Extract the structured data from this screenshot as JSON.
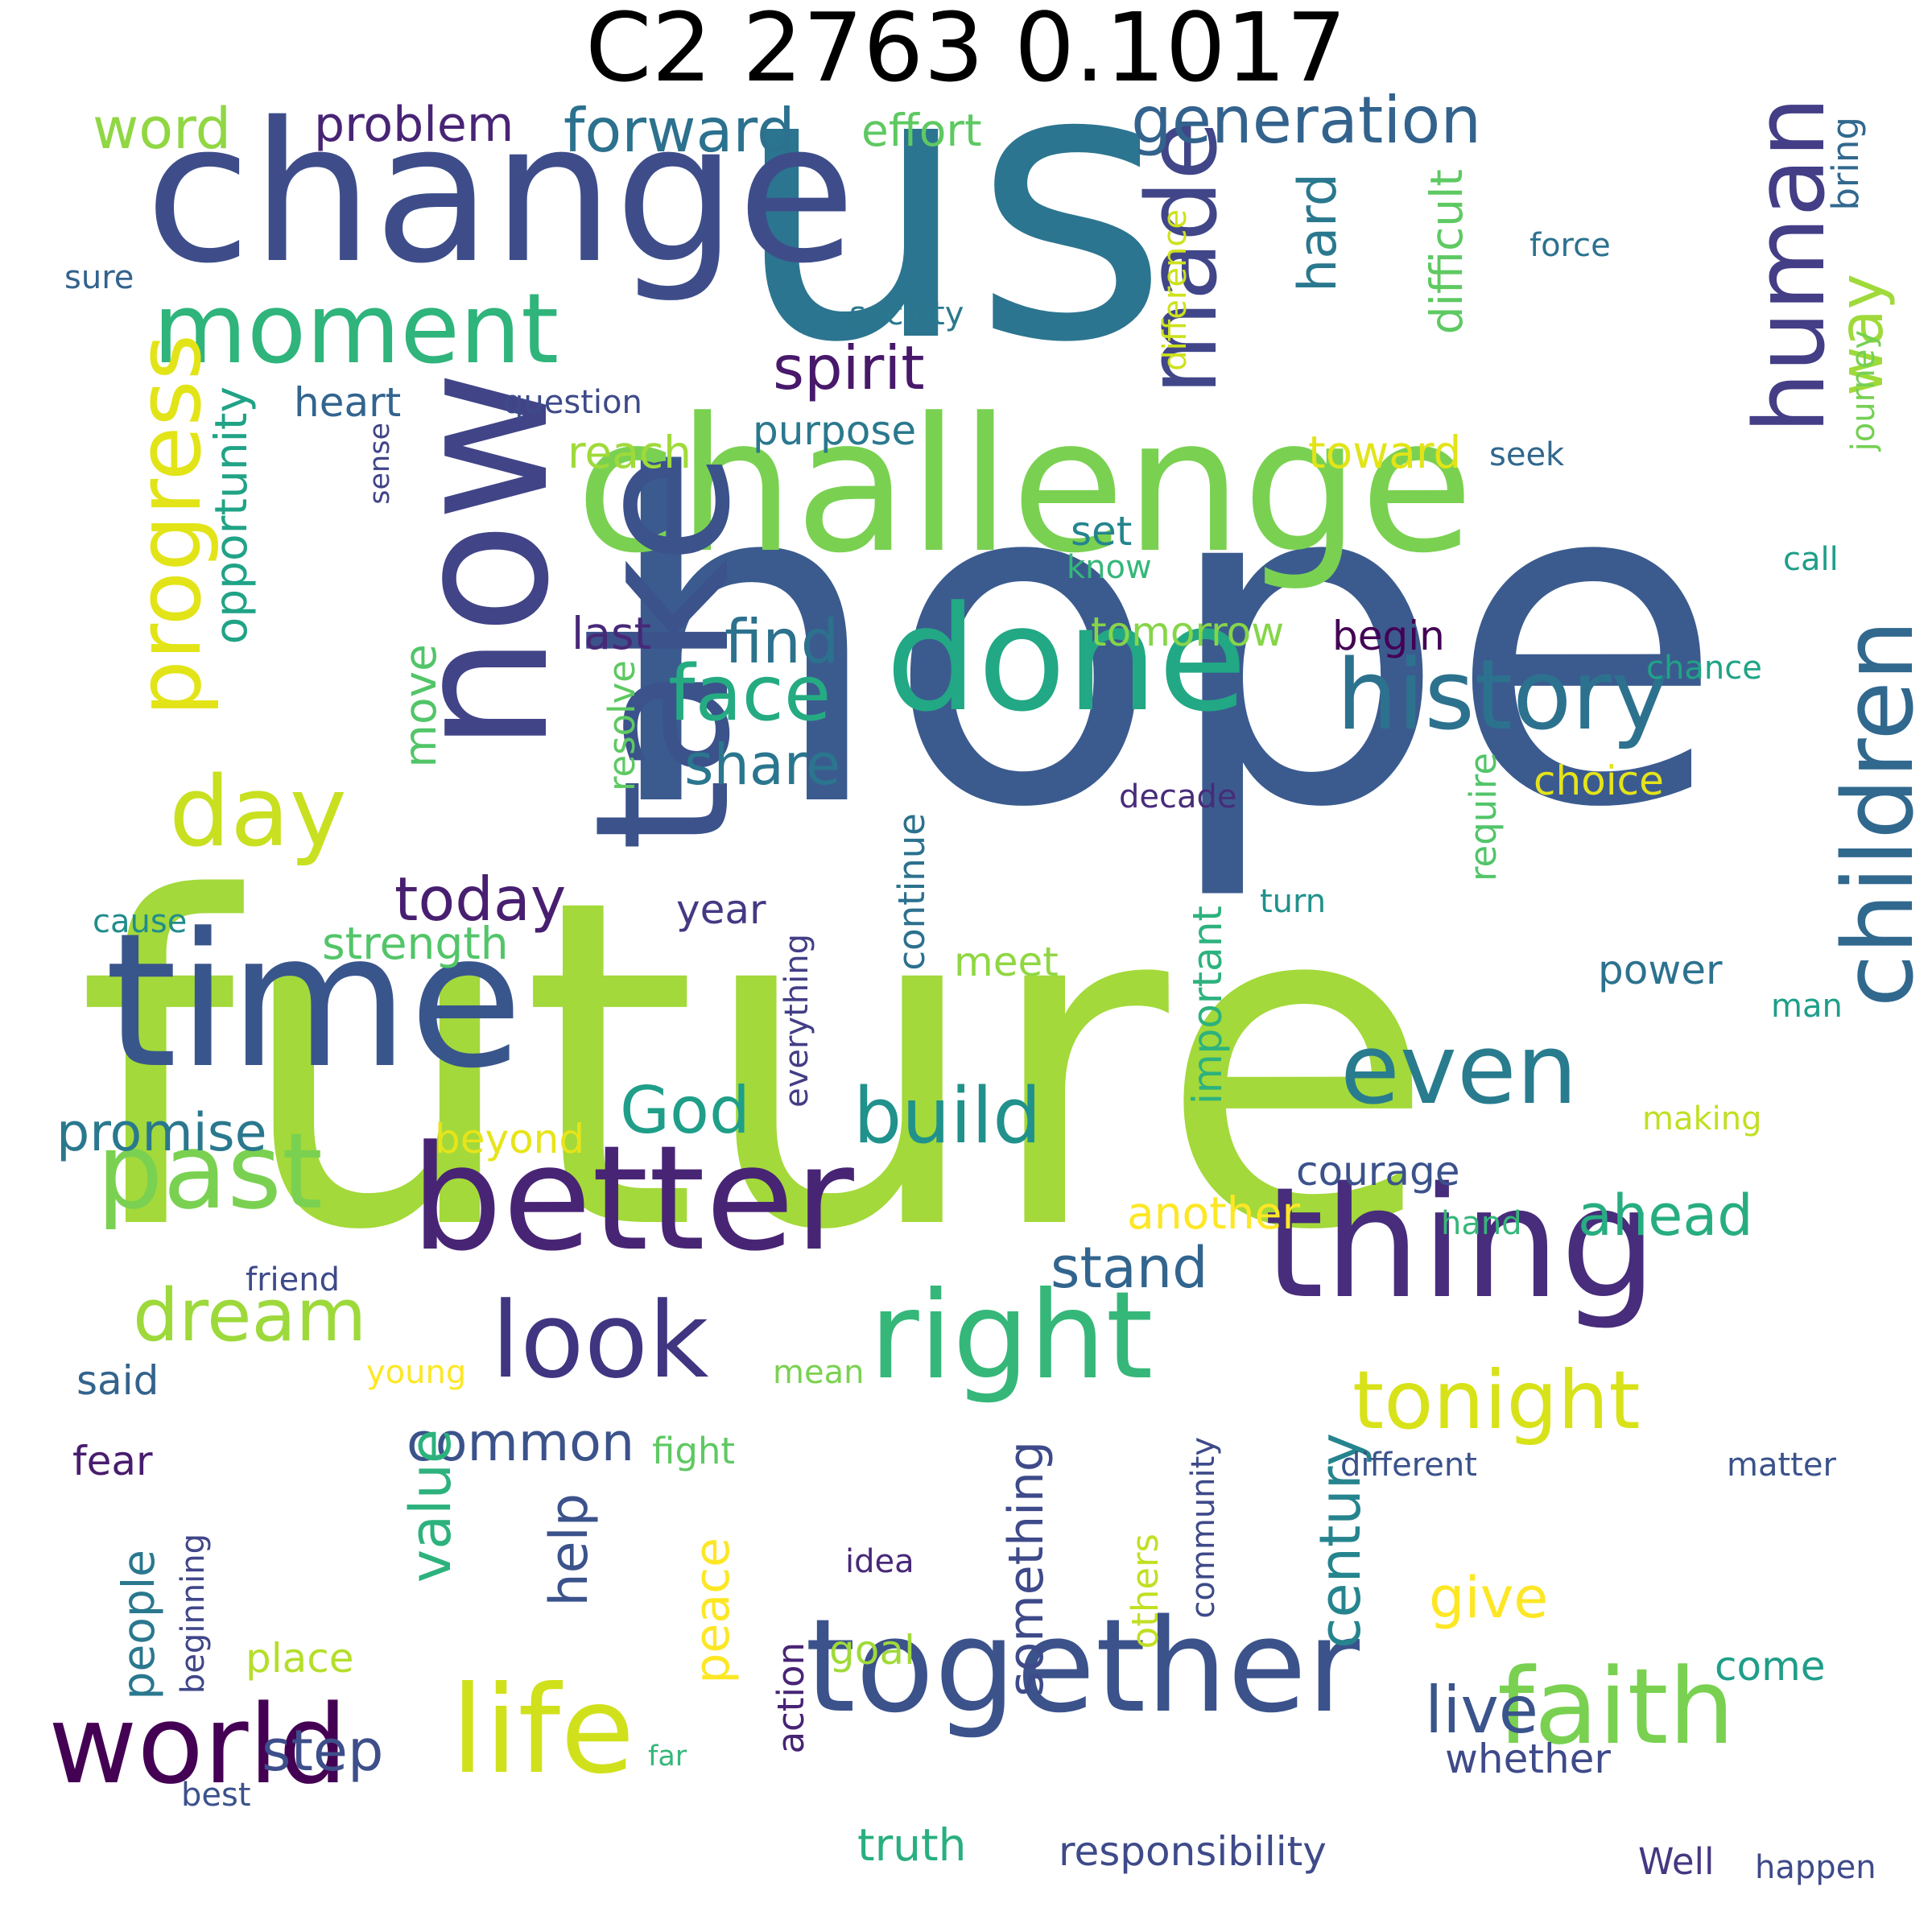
{
  "title": "C2 2763 0.1017",
  "words": [
    {
      "text": "hope",
      "color": "#3b5b8f"
    },
    {
      "text": "future",
      "color": "#a3d93a"
    },
    {
      "text": "us",
      "color": "#2c7590"
    },
    {
      "text": "change",
      "color": "#3e4d8a"
    },
    {
      "text": "challenge",
      "color": "#7ad151"
    },
    {
      "text": "time",
      "color": "#39568c"
    },
    {
      "text": "now",
      "color": "#414487"
    },
    {
      "text": "take",
      "color": "#3b528b"
    },
    {
      "text": "done",
      "color": "#22a884"
    },
    {
      "text": "better",
      "color": "#482475"
    },
    {
      "text": "thing",
      "color": "#472d7b"
    },
    {
      "text": "together",
      "color": "#3b528b"
    },
    {
      "text": "life",
      "color": "#d0e11c"
    },
    {
      "text": "world",
      "color": "#440154"
    },
    {
      "text": "faith",
      "color": "#7ad151"
    },
    {
      "text": "right",
      "color": "#35b779"
    },
    {
      "text": "look",
      "color": "#3f3580"
    },
    {
      "text": "past",
      "color": "#7ad151"
    },
    {
      "text": "history",
      "color": "#2c728e"
    },
    {
      "text": "children",
      "color": "#31688e"
    },
    {
      "text": "human",
      "color": "#433e85"
    },
    {
      "text": "made",
      "color": "#404688"
    },
    {
      "text": "even",
      "color": "#287c8e"
    },
    {
      "text": "moment",
      "color": "#2fb47c"
    },
    {
      "text": "progress",
      "color": "#e2e418"
    },
    {
      "text": "day",
      "color": "#c8e020"
    },
    {
      "text": "tonight",
      "color": "#d8e219"
    },
    {
      "text": "generation",
      "color": "#33638d"
    },
    {
      "text": "forward",
      "color": "#2c718e"
    },
    {
      "text": "spirit",
      "color": "#48186a"
    },
    {
      "text": "face",
      "color": "#25ab82"
    },
    {
      "text": "build",
      "color": "#21918c"
    },
    {
      "text": "dream",
      "color": "#9dd93b"
    },
    {
      "text": "today",
      "color": "#481f70"
    },
    {
      "text": "word",
      "color": "#90d743"
    },
    {
      "text": "problem",
      "color": "#482475"
    },
    {
      "text": "effort",
      "color": "#5ec962"
    },
    {
      "text": "way",
      "color": "#9fda3a"
    },
    {
      "text": "hard",
      "color": "#2a788e"
    },
    {
      "text": "difficult",
      "color": "#5ec962"
    },
    {
      "text": "find",
      "color": "#2c718e"
    },
    {
      "text": "share",
      "color": "#2a768e"
    },
    {
      "text": "stand",
      "color": "#32658e"
    },
    {
      "text": "ahead",
      "color": "#27ad81"
    },
    {
      "text": "God",
      "color": "#1f9e89"
    },
    {
      "text": "common",
      "color": "#3b528b"
    },
    {
      "text": "century",
      "color": "#25848e"
    },
    {
      "text": "live",
      "color": "#3a548c"
    },
    {
      "text": "give",
      "color": "#fde725"
    },
    {
      "text": "step",
      "color": "#3d4e8a"
    },
    {
      "text": "promise",
      "color": "#2a788e"
    },
    {
      "text": "something",
      "color": "#3e4a89"
    },
    {
      "text": "value",
      "color": "#2db27d"
    },
    {
      "text": "help",
      "color": "#3b528b"
    },
    {
      "text": "peace",
      "color": "#fde725"
    },
    {
      "text": "people",
      "color": "#2a788e"
    },
    {
      "text": "opportunity",
      "color": "#20a386"
    },
    {
      "text": "move",
      "color": "#52c569"
    },
    {
      "text": "bring",
      "color": "#31688e"
    },
    {
      "text": "force",
      "color": "#2c728e"
    },
    {
      "text": "society",
      "color": "#2a788e"
    },
    {
      "text": "difference",
      "color": "#cde11d"
    },
    {
      "text": "heart",
      "color": "#32648e"
    },
    {
      "text": "question",
      "color": "#3e4a89"
    },
    {
      "text": "purpose",
      "color": "#2a788e"
    },
    {
      "text": "reach",
      "color": "#9fda3a"
    },
    {
      "text": "toward",
      "color": "#e2e418"
    },
    {
      "text": "seek",
      "color": "#31688e"
    },
    {
      "text": "journey",
      "color": "#75d054"
    },
    {
      "text": "set",
      "color": "#25848e"
    },
    {
      "text": "know",
      "color": "#35b779"
    },
    {
      "text": "call",
      "color": "#1f9e89"
    },
    {
      "text": "last",
      "color": "#482878"
    },
    {
      "text": "tomorrow",
      "color": "#86d549"
    },
    {
      "text": "begin",
      "color": "#440154"
    },
    {
      "text": "chance",
      "color": "#20a386"
    },
    {
      "text": "choice",
      "color": "#e5e419"
    },
    {
      "text": "resolve",
      "color": "#5ec962"
    },
    {
      "text": "decade",
      "color": "#472c7a"
    },
    {
      "text": "require",
      "color": "#52c569"
    },
    {
      "text": "turn",
      "color": "#21918c"
    },
    {
      "text": "continue",
      "color": "#2c718e"
    },
    {
      "text": "year",
      "color": "#443983"
    },
    {
      "text": "meet",
      "color": "#90d743"
    },
    {
      "text": "power",
      "color": "#2c728e"
    },
    {
      "text": "man",
      "color": "#1f9e89"
    },
    {
      "text": "strength",
      "color": "#52c569"
    },
    {
      "text": "cause",
      "color": "#228c8d"
    },
    {
      "text": "sure",
      "color": "#33638d"
    },
    {
      "text": "sense",
      "color": "#414487"
    },
    {
      "text": "everything",
      "color": "#433e85"
    },
    {
      "text": "important",
      "color": "#2db27d"
    },
    {
      "text": "making",
      "color": "#c2df23"
    },
    {
      "text": "beyond",
      "color": "#e7e419"
    },
    {
      "text": "courage",
      "color": "#3b528b"
    },
    {
      "text": "another",
      "color": "#fde725"
    },
    {
      "text": "hand",
      "color": "#35b779"
    },
    {
      "text": "friend",
      "color": "#3e4a89"
    },
    {
      "text": "said",
      "color": "#33638d"
    },
    {
      "text": "young",
      "color": "#fde725"
    },
    {
      "text": "mean",
      "color": "#7ad151"
    },
    {
      "text": "fear",
      "color": "#481c6e"
    },
    {
      "text": "fight",
      "color": "#5ec962"
    },
    {
      "text": "different",
      "color": "#3b528b"
    },
    {
      "text": "matter",
      "color": "#3b528b"
    },
    {
      "text": "community",
      "color": "#3e4a89"
    },
    {
      "text": "others",
      "color": "#c2df23"
    },
    {
      "text": "idea",
      "color": "#482878"
    },
    {
      "text": "goal",
      "color": "#a0da39"
    },
    {
      "text": "place",
      "color": "#b5de2b"
    },
    {
      "text": "beginning",
      "color": "#404688"
    },
    {
      "text": "action",
      "color": "#482475"
    },
    {
      "text": "far",
      "color": "#35b779"
    },
    {
      "text": "come",
      "color": "#1f9e89"
    },
    {
      "text": "whether",
      "color": "#3e4a89"
    },
    {
      "text": "best",
      "color": "#3b528b"
    },
    {
      "text": "truth",
      "color": "#29af7f"
    },
    {
      "text": "responsibility",
      "color": "#3e4a89"
    },
    {
      "text": "Well",
      "color": "#453781"
    },
    {
      "text": "happen",
      "color": "#3e4a89"
    }
  ]
}
